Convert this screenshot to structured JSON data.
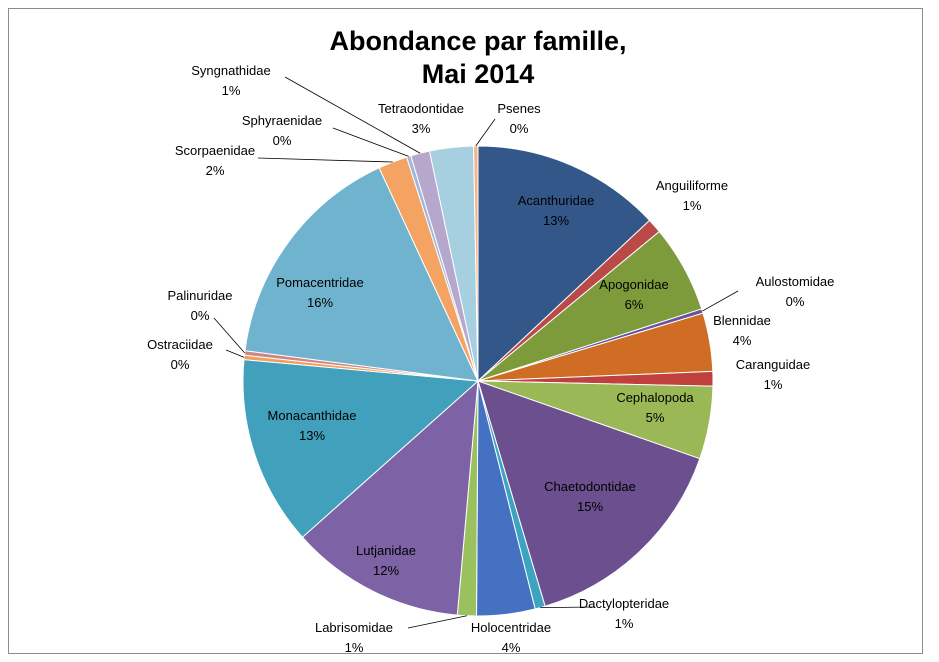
{
  "chart_data": {
    "type": "pie",
    "title_line1": "Abondance par famille,",
    "title_line2": "Mai 2014",
    "slices": [
      {
        "name": "Acanthuridae",
        "value": 13,
        "percent_label": "13%",
        "color": "#34578a"
      },
      {
        "name": "Anguiliforme",
        "value": 1,
        "percent_label": "1%",
        "color": "#b94a47"
      },
      {
        "name": "Apogonidae",
        "value": 6,
        "percent_label": "6%",
        "color": "#7e9b3c"
      },
      {
        "name": "Aulostomidae",
        "value": 0.3,
        "percent_label": "0%",
        "color": "#6950a0"
      },
      {
        "name": "Blennidae",
        "value": 4,
        "percent_label": "4%",
        "color": "#d06d24"
      },
      {
        "name": "Caranguidae",
        "value": 1,
        "percent_label": "1%",
        "color": "#c0403e"
      },
      {
        "name": "Cephalopoda",
        "value": 5,
        "percent_label": "5%",
        "color": "#9ab856"
      },
      {
        "name": "Chaetodontidae",
        "value": 15,
        "percent_label": "15%",
        "color": "#6c4f8e"
      },
      {
        "name": "Dactylopteridae",
        "value": 0.7,
        "percent_label": "1%",
        "color": "#3ea3c0"
      },
      {
        "name": "Holocentridae",
        "value": 4,
        "percent_label": "4%",
        "color": "#4571c2"
      },
      {
        "name": "Labrisomidae",
        "value": 1.3,
        "percent_label": "1%",
        "color": "#9bc05e"
      },
      {
        "name": "Lutjanidae",
        "value": 12,
        "percent_label": "12%",
        "color": "#7d62a6"
      },
      {
        "name": "Monacanthidae",
        "value": 13,
        "percent_label": "13%",
        "color": "#41a1bc"
      },
      {
        "name": "Ostraciidae",
        "value": 0.3,
        "percent_label": "0%",
        "color": "#f0a05c"
      },
      {
        "name": "Palinuridae",
        "value": 0.3,
        "percent_label": "0%",
        "color": "#cf8583"
      },
      {
        "name": "Pomacentridae",
        "value": 16,
        "percent_label": "16%",
        "color": "#70b3ce"
      },
      {
        "name": "Scorpaenidae",
        "value": 2,
        "percent_label": "2%",
        "color": "#f5a362"
      },
      {
        "name": "Sphyraenidae",
        "value": 0.3,
        "percent_label": "0%",
        "color": "#9fb8dc"
      },
      {
        "name": "Syngnathidae",
        "value": 1.3,
        "percent_label": "1%",
        "color": "#b6a8cd"
      },
      {
        "name": "Tetraodontidae",
        "value": 3,
        "percent_label": "3%",
        "color": "#a6cfe0"
      },
      {
        "name": "Psenes",
        "value": 0.3,
        "percent_label": "0%",
        "color": "#f6b48a"
      }
    ]
  }
}
